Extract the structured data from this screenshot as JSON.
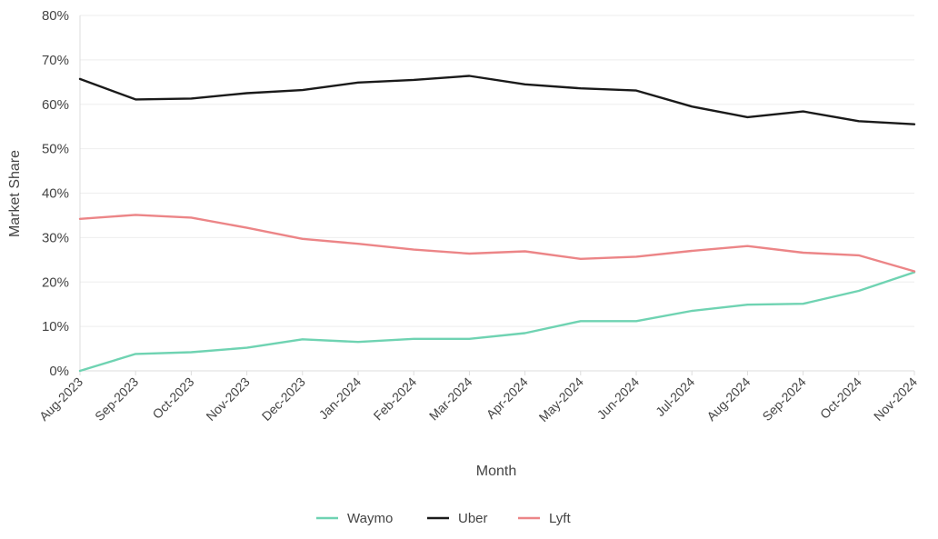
{
  "chart_data": {
    "type": "line",
    "title": "",
    "xlabel": "Month",
    "ylabel": "Market Share",
    "ylim": [
      0,
      80
    ],
    "y_ticks": [
      0,
      10,
      20,
      30,
      40,
      50,
      60,
      70,
      80
    ],
    "y_tick_labels": [
      "0%",
      "10%",
      "20%",
      "30%",
      "40%",
      "50%",
      "60%",
      "70%",
      "80%"
    ],
    "grid": true,
    "legend_position": "bottom-center",
    "categories": [
      "Aug-2023",
      "Sep-2023",
      "Oct-2023",
      "Nov-2023",
      "Dec-2023",
      "Jan-2024",
      "Feb-2024",
      "Mar-2024",
      "Apr-2024",
      "May-2024",
      "Jun-2024",
      "Jul-2024",
      "Aug-2024",
      "Sep-2024",
      "Oct-2024",
      "Nov-2024"
    ],
    "series": [
      {
        "name": "Waymo",
        "color": "#6fd3b2",
        "values": [
          0,
          3.8,
          4.2,
          5.2,
          7.1,
          6.5,
          7.2,
          7.2,
          8.5,
          11.2,
          11.2,
          13.5,
          14.9,
          15.1,
          18,
          22.2
        ]
      },
      {
        "name": "Uber",
        "color": "#1a1a1a",
        "values": [
          65.7,
          61.1,
          61.3,
          62.5,
          63.2,
          64.9,
          65.5,
          66.4,
          64.5,
          63.6,
          63.1,
          59.5,
          57.1,
          58.4,
          56.2,
          55.5
        ]
      },
      {
        "name": "Lyft",
        "color": "#ec8587",
        "values": [
          34.2,
          35.1,
          34.5,
          32.2,
          29.7,
          28.6,
          27.3,
          26.4,
          26.9,
          25.2,
          25.7,
          27,
          28.1,
          26.6,
          26,
          22.4
        ]
      }
    ]
  }
}
